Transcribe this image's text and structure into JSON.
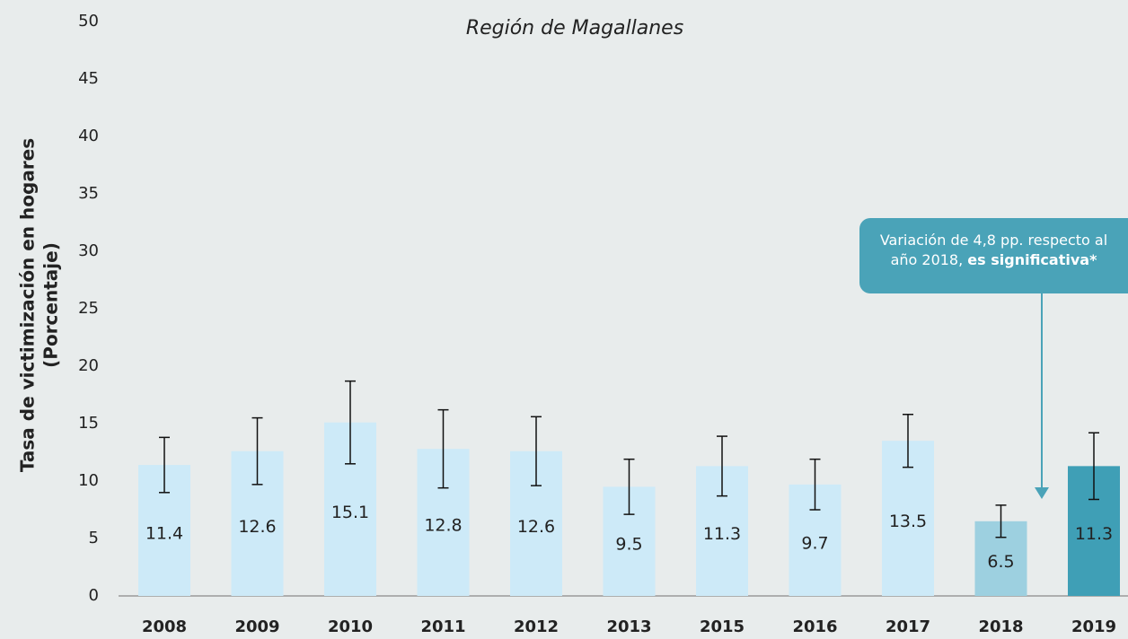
{
  "chart_data": {
    "type": "bar",
    "title": "Región de Magallanes",
    "y_label": [
      "Tasa de victimización en hogares",
      "(Porcentaje)"
    ],
    "categories": [
      "2008",
      "2009",
      "2010",
      "2011",
      "2012",
      "2013",
      "2015",
      "2016",
      "2017",
      "2018",
      "2019"
    ],
    "values": [
      11.4,
      12.6,
      15.1,
      12.8,
      12.6,
      9.5,
      11.3,
      9.7,
      13.5,
      6.5,
      11.3
    ],
    "errors": [
      2.4,
      2.9,
      3.6,
      3.4,
      3.0,
      2.4,
      2.6,
      2.2,
      2.3,
      1.4,
      2.9
    ],
    "colors": [
      "#cdeaf8",
      "#cdeaf8",
      "#cdeaf8",
      "#cdeaf8",
      "#cdeaf8",
      "#cdeaf8",
      "#cdeaf8",
      "#cdeaf8",
      "#cdeaf8",
      "#9dd0e0",
      "#3f9fb6"
    ],
    "ylim": [
      0,
      50
    ],
    "yticks": [
      0,
      5,
      10,
      15,
      20,
      25,
      30,
      35,
      40,
      45,
      50
    ],
    "annotation": {
      "text": "Variación de 4,8 pp. respecto al año 2018, ",
      "bold": "es significativa*"
    }
  }
}
